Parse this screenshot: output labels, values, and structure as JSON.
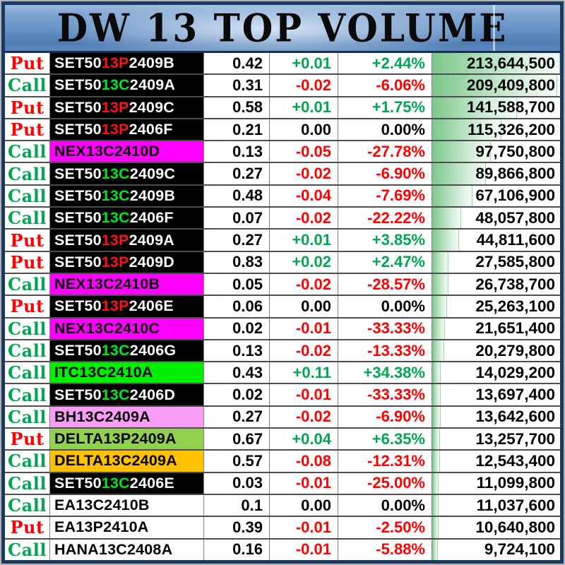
{
  "title": "DW 13 TOP VOLUME",
  "colors": {
    "side": {
      "put": "#ff0000",
      "call": "#00a651"
    },
    "dir": {
      "up": "#00a651",
      "down": "#ff0000",
      "flat": "#000000"
    },
    "bg": {
      "black": "#000000",
      "magenta": "#ff00ff",
      "green": "#00ee00",
      "pink": "#f99cf5",
      "lightgreen": "#92d050",
      "orange": "#ffc000",
      "white": "#ffffff"
    },
    "text": {
      "white": "#ffffff",
      "red": "#ff1212",
      "green": "#00e61e",
      "black": "#000000"
    },
    "bar_gradient_start": "#7dc78b",
    "bar_gradient_end": "#f3faf5",
    "title_border": "#1b3a63"
  },
  "rows": [
    {
      "side": "Put",
      "symbol": [
        {
          "t": "SET50",
          "c": "white"
        },
        {
          "t": "13P",
          "c": "red"
        },
        {
          "t": "2409B",
          "c": "white"
        }
      ],
      "bg": "black",
      "price": "0.42",
      "change": "+0.01",
      "pct": "+2.44%",
      "dir": "up",
      "volume": "213,644,500",
      "volume_value": 213644500
    },
    {
      "side": "Call",
      "symbol": [
        {
          "t": "SET50",
          "c": "white"
        },
        {
          "t": "13C",
          "c": "green"
        },
        {
          "t": "2409A",
          "c": "white"
        }
      ],
      "bg": "black",
      "price": "0.31",
      "change": "-0.02",
      "pct": "-6.06%",
      "dir": "down",
      "volume": "209,409,800",
      "volume_value": 209409800
    },
    {
      "side": "Put",
      "symbol": [
        {
          "t": "SET50",
          "c": "white"
        },
        {
          "t": "13P",
          "c": "red"
        },
        {
          "t": "2409C",
          "c": "white"
        }
      ],
      "bg": "black",
      "price": "0.58",
      "change": "+0.01",
      "pct": "+1.75%",
      "dir": "up",
      "volume": "141,588,700",
      "volume_value": 141588700
    },
    {
      "side": "Put",
      "symbol": [
        {
          "t": "SET50",
          "c": "white"
        },
        {
          "t": "13P",
          "c": "red"
        },
        {
          "t": "2406F",
          "c": "white"
        }
      ],
      "bg": "black",
      "price": "0.21",
      "change": "0.00",
      "pct": "0.00%",
      "dir": "flat",
      "volume": "115,326,200",
      "volume_value": 115326200
    },
    {
      "side": "Call",
      "symbol": [
        {
          "t": "NEX13C2410D",
          "c": "black"
        }
      ],
      "bg": "magenta",
      "price": "0.13",
      "change": "-0.05",
      "pct": "-27.78%",
      "dir": "down",
      "volume": "97,750,800",
      "volume_value": 97750800
    },
    {
      "side": "Call",
      "symbol": [
        {
          "t": "SET50",
          "c": "white"
        },
        {
          "t": "13C",
          "c": "green"
        },
        {
          "t": "2409C",
          "c": "white"
        }
      ],
      "bg": "black",
      "price": "0.27",
      "change": "-0.02",
      "pct": "-6.90%",
      "dir": "down",
      "volume": "89,866,800",
      "volume_value": 89866800
    },
    {
      "side": "Call",
      "symbol": [
        {
          "t": "SET50",
          "c": "white"
        },
        {
          "t": "13C",
          "c": "green"
        },
        {
          "t": "2409B",
          "c": "white"
        }
      ],
      "bg": "black",
      "price": "0.48",
      "change": "-0.04",
      "pct": "-7.69%",
      "dir": "down",
      "volume": "67,106,900",
      "volume_value": 67106900
    },
    {
      "side": "Call",
      "symbol": [
        {
          "t": "SET50",
          "c": "white"
        },
        {
          "t": "13C",
          "c": "green"
        },
        {
          "t": "2406F",
          "c": "white"
        }
      ],
      "bg": "black",
      "price": "0.07",
      "change": "-0.02",
      "pct": "-22.22%",
      "dir": "down",
      "volume": "48,057,800",
      "volume_value": 48057800
    },
    {
      "side": "Put",
      "symbol": [
        {
          "t": "SET50",
          "c": "white"
        },
        {
          "t": "13P",
          "c": "red"
        },
        {
          "t": "2409A",
          "c": "white"
        }
      ],
      "bg": "black",
      "price": "0.27",
      "change": "+0.01",
      "pct": "+3.85%",
      "dir": "up",
      "volume": "44,811,600",
      "volume_value": 44811600
    },
    {
      "side": "Put",
      "symbol": [
        {
          "t": "SET50",
          "c": "white"
        },
        {
          "t": "13P",
          "c": "red"
        },
        {
          "t": "2409D",
          "c": "white"
        }
      ],
      "bg": "black",
      "price": "0.83",
      "change": "+0.02",
      "pct": "+2.47%",
      "dir": "up",
      "volume": "27,585,800",
      "volume_value": 27585800
    },
    {
      "side": "Call",
      "symbol": [
        {
          "t": "NEX13C2410B",
          "c": "black"
        }
      ],
      "bg": "magenta",
      "price": "0.05",
      "change": "-0.02",
      "pct": "-28.57%",
      "dir": "down",
      "volume": "26,738,700",
      "volume_value": 26738700
    },
    {
      "side": "Put",
      "symbol": [
        {
          "t": "SET50",
          "c": "white"
        },
        {
          "t": "13P",
          "c": "red"
        },
        {
          "t": "2406E",
          "c": "white"
        }
      ],
      "bg": "black",
      "price": "0.06",
      "change": "0.00",
      "pct": "0.00%",
      "dir": "flat",
      "volume": "25,263,100",
      "volume_value": 25263100
    },
    {
      "side": "Call",
      "symbol": [
        {
          "t": "NEX13C2410C",
          "c": "black"
        }
      ],
      "bg": "magenta",
      "price": "0.02",
      "change": "-0.01",
      "pct": "-33.33%",
      "dir": "down",
      "volume": "21,651,400",
      "volume_value": 21651400
    },
    {
      "side": "Call",
      "symbol": [
        {
          "t": "SET50",
          "c": "white"
        },
        {
          "t": "13C",
          "c": "green"
        },
        {
          "t": "2406G",
          "c": "white"
        }
      ],
      "bg": "black",
      "price": "0.13",
      "change": "-0.02",
      "pct": "-13.33%",
      "dir": "down",
      "volume": "20,279,800",
      "volume_value": 20279800
    },
    {
      "side": "Call",
      "symbol": [
        {
          "t": "ITC13C2410A",
          "c": "black"
        }
      ],
      "bg": "green",
      "price": "0.43",
      "change": "+0.11",
      "pct": "+34.38%",
      "dir": "up",
      "volume": "14,029,200",
      "volume_value": 14029200
    },
    {
      "side": "Call",
      "symbol": [
        {
          "t": "SET50",
          "c": "white"
        },
        {
          "t": "13C",
          "c": "green"
        },
        {
          "t": "2406D",
          "c": "white"
        }
      ],
      "bg": "black",
      "price": "0.02",
      "change": "-0.01",
      "pct": "-33.33%",
      "dir": "down",
      "volume": "13,697,400",
      "volume_value": 13697400
    },
    {
      "side": "Call",
      "symbol": [
        {
          "t": "BH13C2409A",
          "c": "black"
        }
      ],
      "bg": "pink",
      "price": "0.27",
      "change": "-0.02",
      "pct": "-6.90%",
      "dir": "down",
      "volume": "13,642,600",
      "volume_value": 13642600
    },
    {
      "side": "Put",
      "symbol": [
        {
          "t": "DELTA13P2409A",
          "c": "black"
        }
      ],
      "bg": "lightgreen",
      "price": "0.67",
      "change": "+0.04",
      "pct": "+6.35%",
      "dir": "up",
      "volume": "13,257,700",
      "volume_value": 13257700
    },
    {
      "side": "Call",
      "symbol": [
        {
          "t": "DELTA13C2409A",
          "c": "black"
        }
      ],
      "bg": "orange",
      "price": "0.57",
      "change": "-0.08",
      "pct": "-12.31%",
      "dir": "down",
      "volume": "12,543,400",
      "volume_value": 12543400
    },
    {
      "side": "Call",
      "symbol": [
        {
          "t": "SET50",
          "c": "white"
        },
        {
          "t": "13C",
          "c": "green"
        },
        {
          "t": "2406E",
          "c": "white"
        }
      ],
      "bg": "black",
      "price": "0.03",
      "change": "-0.01",
      "pct": "-25.00%",
      "dir": "down",
      "volume": "11,099,800",
      "volume_value": 11099800
    },
    {
      "side": "Call",
      "symbol": [
        {
          "t": "EA13C2410B",
          "c": "black"
        }
      ],
      "bg": "white",
      "price": "0.1",
      "change": "0.00",
      "pct": "0.00%",
      "dir": "flat",
      "volume": "11,037,600",
      "volume_value": 11037600
    },
    {
      "side": "Put",
      "symbol": [
        {
          "t": "EA13P2410A",
          "c": "black"
        }
      ],
      "bg": "white",
      "price": "0.39",
      "change": "-0.01",
      "pct": "-2.50%",
      "dir": "down",
      "volume": "10,640,800",
      "volume_value": 10640800
    },
    {
      "side": "Call",
      "symbol": [
        {
          "t": "HANA13C2408A",
          "c": "black"
        }
      ],
      "bg": "white",
      "price": "0.16",
      "change": "-0.01",
      "pct": "-5.88%",
      "dir": "down",
      "volume": "9,724,100",
      "volume_value": 9724100
    }
  ]
}
